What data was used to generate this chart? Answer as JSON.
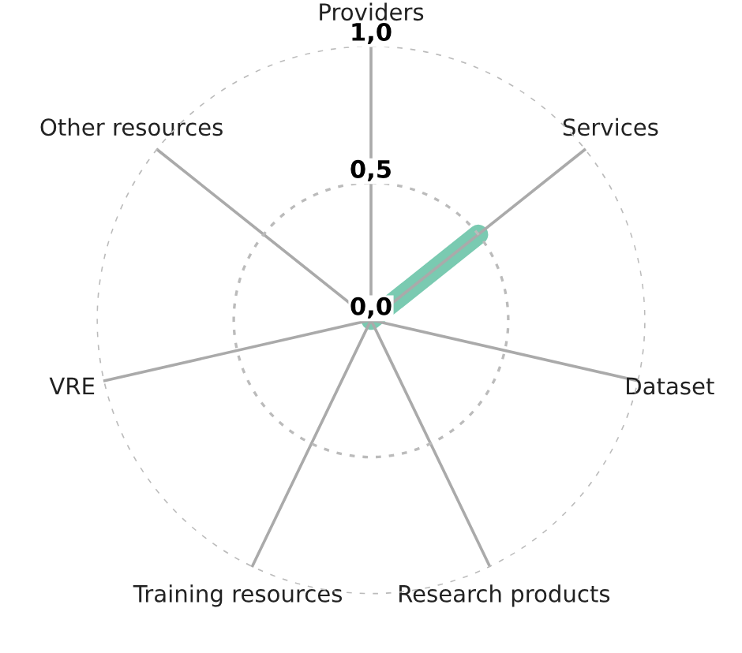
{
  "chart_data": {
    "type": "radar",
    "categories": [
      "Providers",
      "Services",
      "Dataset",
      "Research products",
      "Training resources",
      "VRE",
      "Other resources"
    ],
    "series": [
      {
        "color": "#6cc4a8",
        "values": [
          0,
          0.5,
          0,
          0,
          0,
          0,
          0
        ]
      }
    ],
    "ylim": [
      0,
      1
    ],
    "yticks": [
      {
        "value": 0,
        "label": "0,0"
      },
      {
        "value": 0.5,
        "label": "0,5"
      },
      {
        "value": 1,
        "label": "1,0"
      }
    ],
    "grid": true,
    "marker": "none",
    "line_style": "solid"
  }
}
